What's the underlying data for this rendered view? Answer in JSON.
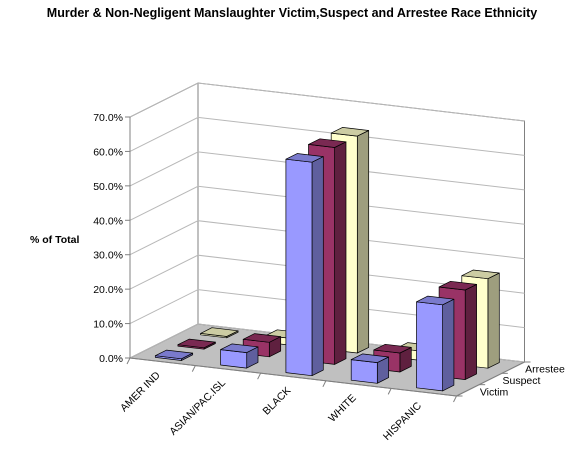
{
  "chart_data": {
    "type": "bar",
    "title": "Murder & Non-Negligent Manslaughter Victim,Suspect and Arrestee Race Ethnicity",
    "ylabel": "%  of Total",
    "ylim": [
      0,
      70
    ],
    "yticks": [
      "0.0%",
      "10.0%",
      "20.0%",
      "30.0%",
      "40.0%",
      "50.0%",
      "60.0%",
      "70.0%"
    ],
    "categories": [
      "AMER IND",
      "ASIAN/PAC.ISL",
      "BLACK",
      "WHITE",
      "HISPANIC"
    ],
    "series": [
      {
        "name": "Victim",
        "values": [
          0.5,
          4.5,
          62.0,
          6.0,
          25.0
        ],
        "color": "#9999ff"
      },
      {
        "name": "Suspect",
        "values": [
          0.4,
          4.2,
          63.0,
          5.5,
          26.0
        ],
        "color": "#993366"
      },
      {
        "name": "Arrestee",
        "values": [
          0.4,
          2.0,
          63.0,
          2.7,
          26.0
        ],
        "color": "#ffffcc"
      }
    ],
    "grid": true
  }
}
